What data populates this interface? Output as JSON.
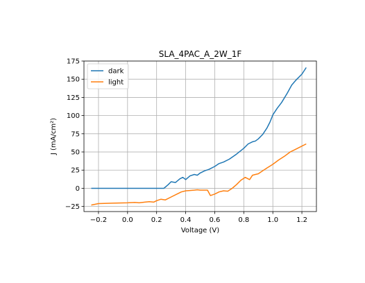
{
  "chart_data": {
    "type": "line",
    "title": "SLA_4PAC_A_2W_1F",
    "xlabel": "Voltage (V)",
    "ylabel": "J (mA/cm²)",
    "xlim": [
      -0.3,
      1.3
    ],
    "ylim": [
      -32,
      175
    ],
    "xticks": [
      -0.2,
      0.0,
      0.2,
      0.4,
      0.6,
      0.8,
      1.0,
      1.2
    ],
    "xtick_labels": [
      "−0.2",
      "0.0",
      "0.2",
      "0.4",
      "0.6",
      "0.8",
      "1.0",
      "1.2"
    ],
    "yticks": [
      -25,
      0,
      25,
      50,
      75,
      100,
      125,
      150,
      175
    ],
    "ytick_labels": [
      "−25",
      "0",
      "25",
      "50",
      "75",
      "100",
      "125",
      "150",
      "175"
    ],
    "grid": true,
    "legend": "top-left",
    "series": [
      {
        "name": "dark",
        "color": "#1f77b4",
        "x": [
          -0.25,
          -0.2,
          -0.1,
          0.0,
          0.1,
          0.2,
          0.25,
          0.28,
          0.3,
          0.33,
          0.36,
          0.38,
          0.4,
          0.43,
          0.46,
          0.48,
          0.5,
          0.53,
          0.56,
          0.6,
          0.63,
          0.66,
          0.7,
          0.75,
          0.8,
          0.83,
          0.86,
          0.88,
          0.9,
          0.93,
          0.96,
          0.98,
          1.0,
          1.03,
          1.06,
          1.1,
          1.13,
          1.16,
          1.2,
          1.23
        ],
        "y": [
          0,
          0,
          0,
          0,
          0,
          0,
          0,
          5,
          9,
          8,
          13,
          15,
          12,
          17,
          19,
          18,
          21,
          24,
          26,
          30,
          34,
          36,
          40,
          47,
          55,
          61,
          64,
          65,
          68,
          74,
          83,
          91,
          101,
          110,
          118,
          131,
          142,
          149,
          157,
          166
        ]
      },
      {
        "name": "light",
        "color": "#ff7f0e",
        "x": [
          -0.25,
          -0.2,
          -0.1,
          0.0,
          0.05,
          0.08,
          0.12,
          0.15,
          0.18,
          0.2,
          0.23,
          0.26,
          0.3,
          0.34,
          0.37,
          0.4,
          0.43,
          0.46,
          0.48,
          0.5,
          0.53,
          0.55,
          0.57,
          0.6,
          0.63,
          0.66,
          0.69,
          0.72,
          0.75,
          0.78,
          0.81,
          0.84,
          0.86,
          0.88,
          0.9,
          0.93,
          0.96,
          1.0,
          1.04,
          1.08,
          1.12,
          1.15,
          1.19,
          1.23
        ],
        "y": [
          -23,
          -21,
          -20.5,
          -20,
          -19.5,
          -20,
          -19,
          -18.5,
          -19,
          -17,
          -15,
          -16,
          -12,
          -8,
          -5,
          -3.5,
          -3,
          -2.5,
          -2,
          -2.5,
          -2.5,
          -2.5,
          -10,
          -8,
          -5,
          -3.5,
          -4,
          0,
          5,
          11,
          15,
          12,
          18,
          19,
          20,
          24,
          28,
          33,
          39,
          44,
          50,
          53,
          57,
          61
        ]
      }
    ]
  }
}
